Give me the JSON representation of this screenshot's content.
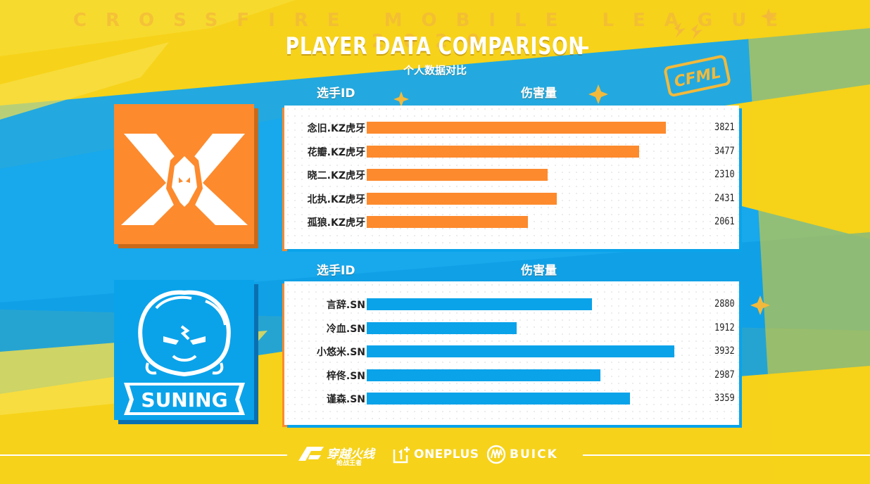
{
  "header": {
    "banner": "CROSSFIRE MOBILE LEAGUE 2020",
    "title": "PLAYER DATA COMPARISON",
    "subtitle": "个人数据对比"
  },
  "colors": {
    "background": "#f6d21a",
    "team1": "#fd8a2d",
    "team2": "#0aa3ea",
    "footer_text": "#ffffff"
  },
  "league_logo": {
    "text": "CFML",
    "icon": "cfml-badge-icon"
  },
  "chart_data": [
    {
      "type": "bar",
      "orientation": "horizontal",
      "team_logo": {
        "icon": "kz-dragon-x-logo-icon"
      },
      "column_headers": {
        "player": "选手ID",
        "metric": "伤害量"
      },
      "categories": [
        "念旧.KZ虎牙",
        "花瓣.KZ虎牙",
        "晓二.KZ虎牙",
        "北执.KZ虎牙",
        "孤狼.KZ虎牙"
      ],
      "values": [
        3821,
        3477,
        2310,
        2431,
        2061
      ],
      "xlim": [
        0,
        4000
      ],
      "color": "#fd8a2d"
    },
    {
      "type": "bar",
      "orientation": "horizontal",
      "team_logo": {
        "icon": "suning-lion-logo-icon",
        "text": "SUNING"
      },
      "column_headers": {
        "player": "选手ID",
        "metric": "伤害量"
      },
      "categories": [
        "言辞.SN",
        "冷血.SN",
        "小悠米.SN",
        "梓佟.SN",
        "谨森.SN"
      ],
      "values": [
        2880,
        1912,
        3932,
        2987,
        3359
      ],
      "xlim": [
        0,
        4000
      ],
      "color": "#0aa3ea"
    }
  ],
  "footer": {
    "sponsors": [
      {
        "icon": "crossfire-logo-icon",
        "text": "穿越火线",
        "subtext": "枪战王者"
      },
      {
        "icon": "oneplus-logo-icon",
        "text": "ONEPLUS"
      },
      {
        "icon": "buick-logo-icon",
        "text": "BUICK"
      }
    ]
  }
}
